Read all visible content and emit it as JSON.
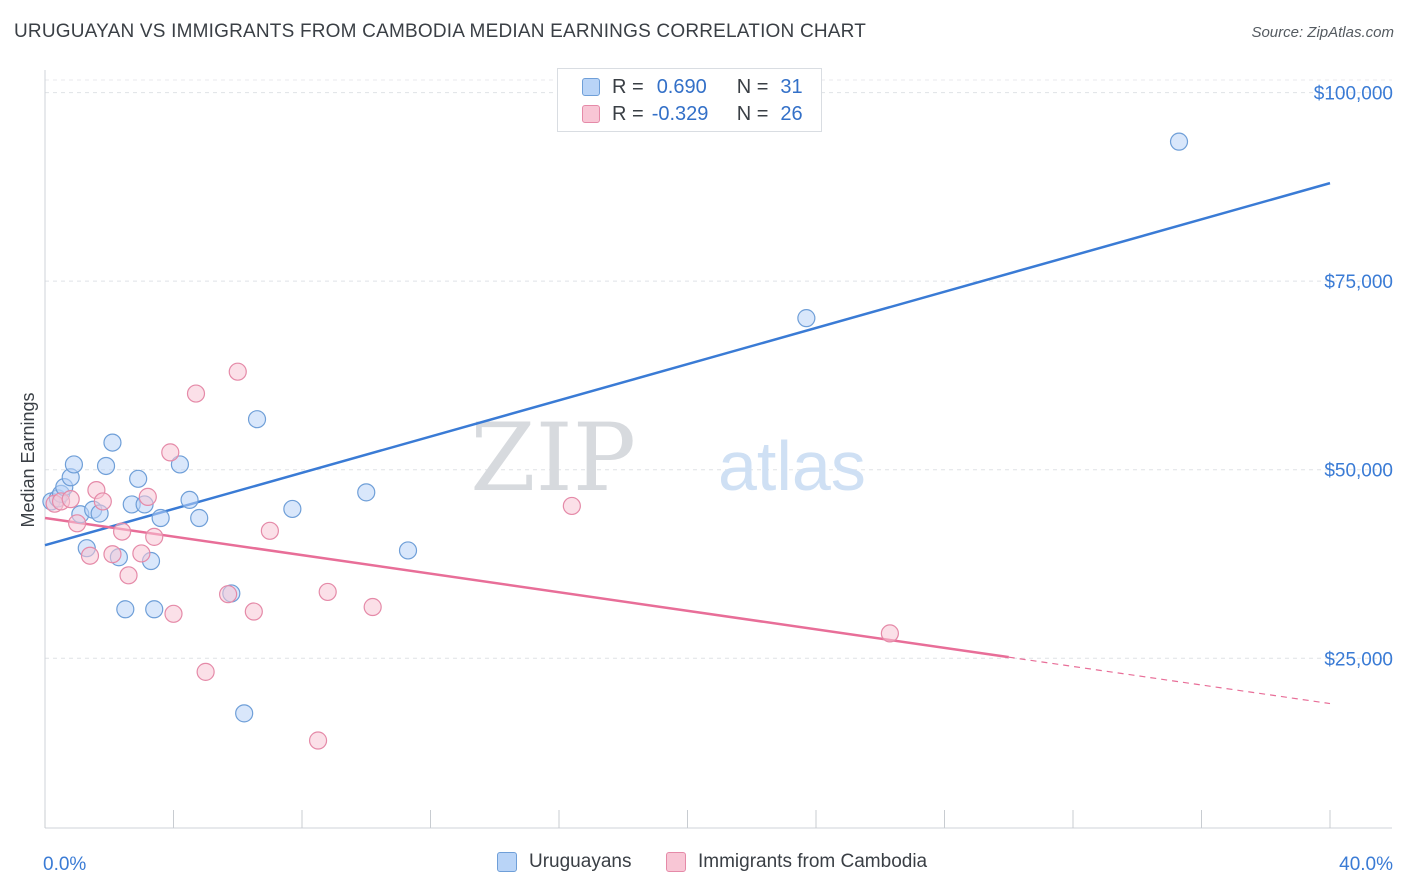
{
  "header": {
    "title": "URUGUAYAN VS IMMIGRANTS FROM CAMBODIA MEDIAN EARNINGS CORRELATION CHART",
    "source": "Source: ZipAtlas.com"
  },
  "watermark": {
    "part1": "ZIP",
    "part2": "atlas"
  },
  "legend_top": {
    "series1": {
      "r_label": "R =",
      "r_value": "0.690",
      "n_label": "N =",
      "n_value": "31"
    },
    "series2": {
      "r_label": "R =",
      "r_value": "-0.329",
      "n_label": "N =",
      "n_value": "26"
    }
  },
  "colors": {
    "blue": "#3a7bd5",
    "pink": "#e86e98",
    "blue_fill": "#b9d4f7",
    "pink_fill": "#f8c6d5"
  },
  "chart_data": {
    "type": "scatter",
    "title": "URUGUAYAN VS IMMIGRANTS FROM CAMBODIA MEDIAN EARNINGS CORRELATION CHART",
    "xlabel": "",
    "ylabel": "Median Earnings",
    "xlim": [
      0,
      40
    ],
    "ylim": [
      2500,
      103000
    ],
    "x_tick_labels": [
      "0.0%",
      "40.0%"
    ],
    "y_ticks": [
      25000,
      50000,
      75000,
      100000
    ],
    "y_tick_labels": [
      "$25,000",
      "$50,000",
      "$75,000",
      "$100,000"
    ],
    "grid": true,
    "legend_position": "bottom",
    "series": [
      {
        "name": "Uruguayans",
        "color": "#3a7bd5",
        "r": 0.69,
        "n": 31,
        "trend": {
          "x": [
            0,
            40
          ],
          "y": [
            40000,
            88000
          ],
          "dashed_from": null
        },
        "points": [
          [
            0.2,
            45800
          ],
          [
            0.4,
            46200
          ],
          [
            0.5,
            46800
          ],
          [
            0.6,
            47700
          ],
          [
            0.8,
            49000
          ],
          [
            0.9,
            50700
          ],
          [
            1.1,
            44100
          ],
          [
            1.3,
            39600
          ],
          [
            1.5,
            44700
          ],
          [
            1.7,
            44200
          ],
          [
            1.9,
            50500
          ],
          [
            2.1,
            53600
          ],
          [
            2.3,
            38400
          ],
          [
            2.5,
            31500
          ],
          [
            2.7,
            45400
          ],
          [
            2.9,
            48800
          ],
          [
            3.1,
            45400
          ],
          [
            3.3,
            37900
          ],
          [
            3.4,
            31500
          ],
          [
            3.6,
            43600
          ],
          [
            4.2,
            50700
          ],
          [
            4.5,
            46000
          ],
          [
            4.8,
            43600
          ],
          [
            5.8,
            33600
          ],
          [
            6.2,
            17700
          ],
          [
            6.6,
            56700
          ],
          [
            7.7,
            44800
          ],
          [
            10.0,
            47000
          ],
          [
            11.3,
            39300
          ],
          [
            23.7,
            70100
          ],
          [
            35.3,
            93500
          ]
        ]
      },
      {
        "name": "Immigrants from Cambodia",
        "color": "#e86e98",
        "r": -0.329,
        "n": 26,
        "trend": {
          "x": [
            0,
            40
          ],
          "y": [
            43600,
            19000
          ],
          "dashed_from": 30
        },
        "points": [
          [
            0.3,
            45500
          ],
          [
            0.5,
            45800
          ],
          [
            0.8,
            46100
          ],
          [
            1.0,
            42900
          ],
          [
            1.4,
            38600
          ],
          [
            1.6,
            47300
          ],
          [
            1.8,
            45800
          ],
          [
            2.1,
            38800
          ],
          [
            2.4,
            41800
          ],
          [
            2.6,
            36000
          ],
          [
            3.0,
            38900
          ],
          [
            3.2,
            46400
          ],
          [
            3.4,
            41100
          ],
          [
            3.9,
            52300
          ],
          [
            4.0,
            30900
          ],
          [
            4.7,
            60100
          ],
          [
            5.0,
            23200
          ],
          [
            5.7,
            33500
          ],
          [
            6.0,
            63000
          ],
          [
            6.5,
            31200
          ],
          [
            7.0,
            41900
          ],
          [
            8.5,
            14100
          ],
          [
            8.8,
            33800
          ],
          [
            10.2,
            31800
          ],
          [
            16.4,
            45200
          ],
          [
            26.3,
            28300
          ]
        ]
      }
    ]
  }
}
